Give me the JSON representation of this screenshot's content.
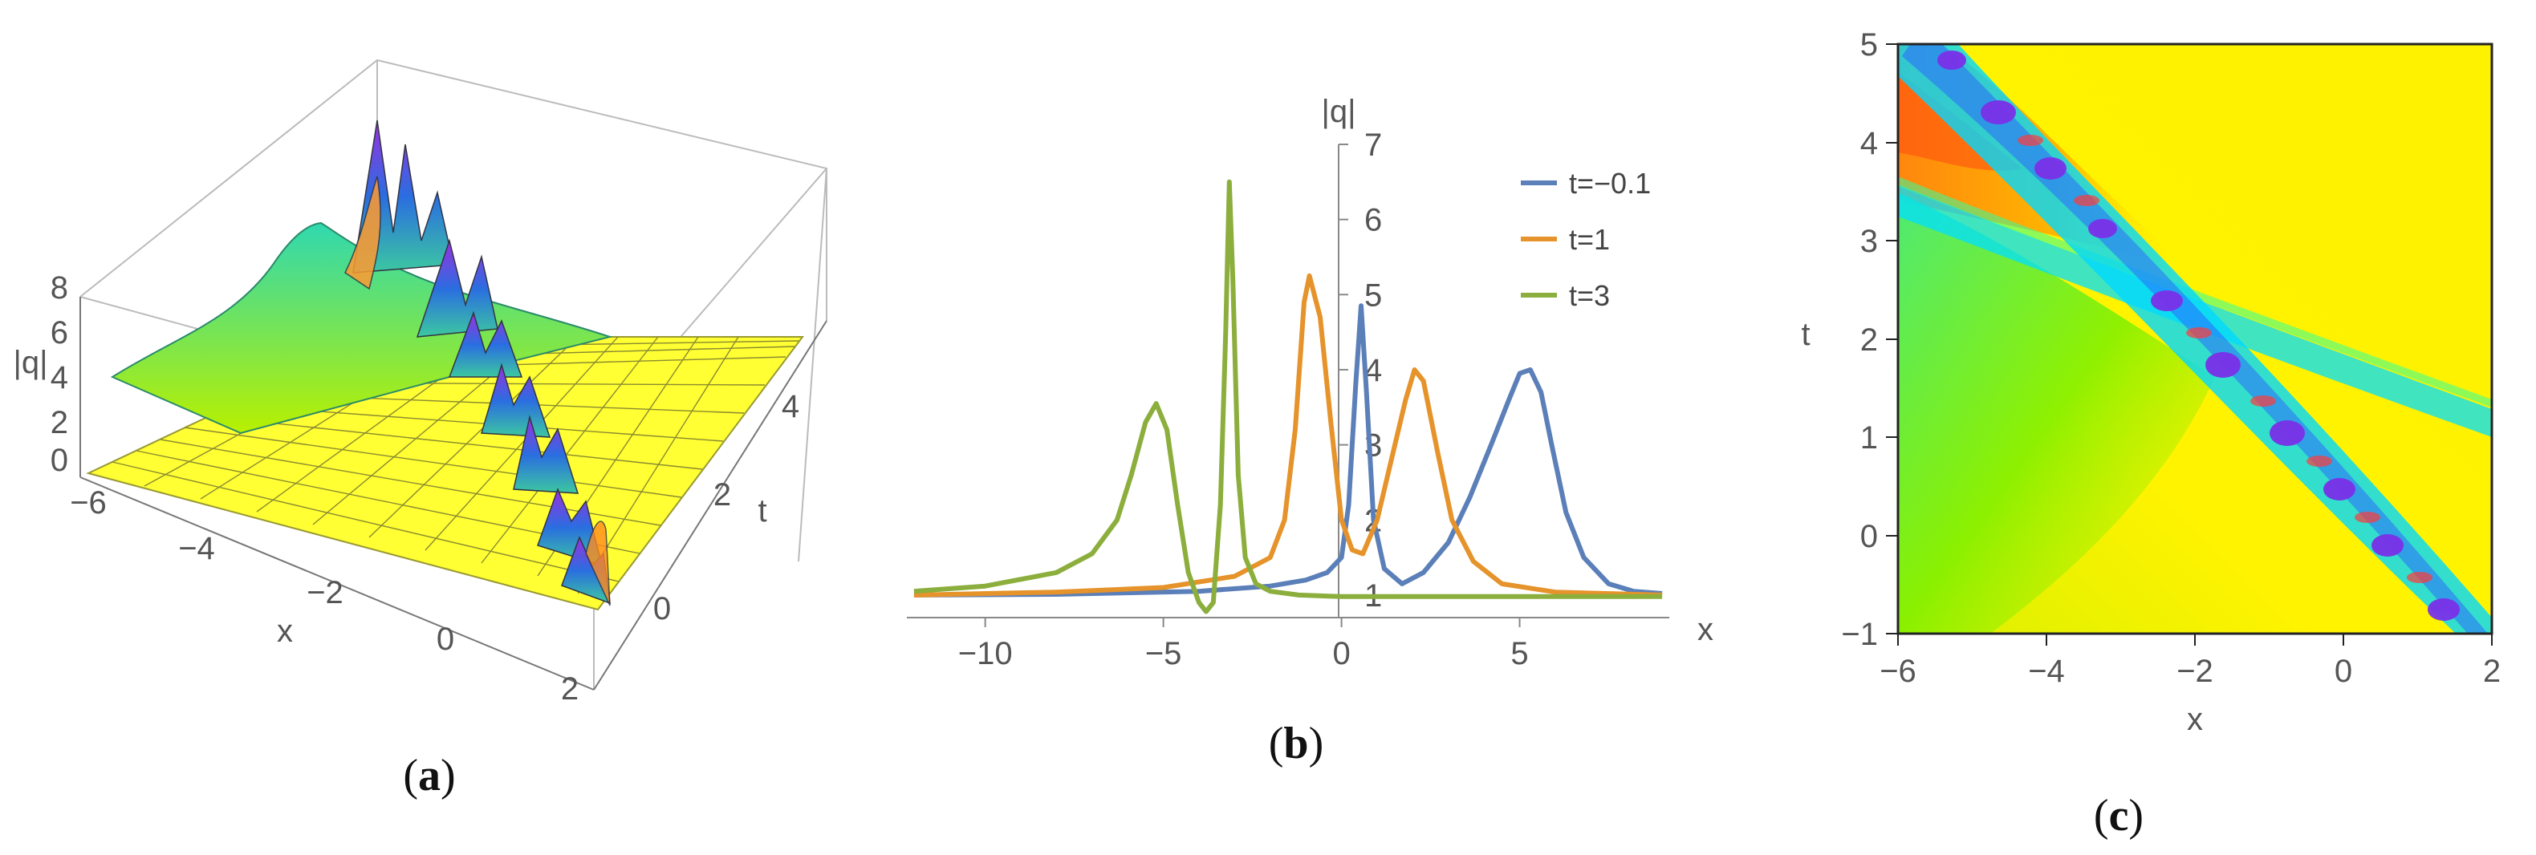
{
  "panels": {
    "a": {
      "caption_open": "(",
      "caption_letter": "a",
      "caption_close": ")"
    },
    "b": {
      "caption_open": "(",
      "caption_letter": "b",
      "caption_close": ")"
    },
    "c": {
      "caption_open": "(",
      "caption_letter": "c",
      "caption_close": ")"
    }
  },
  "chart_data": [
    {
      "type": "surface3d",
      "panel": "a",
      "xlabel": "x",
      "ylabel": "t",
      "zlabel": "|q|",
      "xlim": [
        -6,
        2
      ],
      "ylim": [
        -1,
        5
      ],
      "zlim": [
        0,
        8
      ],
      "x_ticks": [
        "−6",
        "−4",
        "−2",
        "0",
        "2"
      ],
      "y_ticks": [
        "0",
        "2",
        "4"
      ],
      "z_ticks": [
        "0",
        "2",
        "4",
        "6",
        "8"
      ],
      "colors": {
        "base": "#ffff2e",
        "high": "#8a2be2",
        "mid": "#2bd4b0"
      }
    },
    {
      "type": "line",
      "panel": "b",
      "xlabel": "x",
      "ylabel": "|q|",
      "xlim": [
        -12.2,
        9.2
      ],
      "ylim": [
        0.7,
        7
      ],
      "x_ticks": [
        "−10",
        "−5",
        "0",
        "5"
      ],
      "y_ticks": [
        "1",
        "2",
        "3",
        "4",
        "5",
        "6",
        "7"
      ],
      "series": [
        {
          "name": "t=−0.1",
          "color": "#5b7fb8",
          "x": [
            -12,
            -8,
            -4,
            -2,
            -1,
            -0.4,
            0,
            0.2,
            0.4,
            0.55,
            0.7,
            0.9,
            1.2,
            1.7,
            2.3,
            3.0,
            3.6,
            4.2,
            4.7,
            5.0,
            5.3,
            5.6,
            5.9,
            6.3,
            6.8,
            7.5,
            8.2,
            9.0
          ],
          "y": [
            1.0,
            1.01,
            1.05,
            1.12,
            1.2,
            1.3,
            1.5,
            2.2,
            3.8,
            4.85,
            3.7,
            2.0,
            1.35,
            1.15,
            1.3,
            1.7,
            2.3,
            3.0,
            3.6,
            3.95,
            4.0,
            3.7,
            3.0,
            2.1,
            1.5,
            1.15,
            1.05,
            1.02
          ]
        },
        {
          "name": "t=1",
          "color": "#e5932a",
          "x": [
            -12,
            -8,
            -5,
            -3,
            -2,
            -1.6,
            -1.3,
            -1.05,
            -0.9,
            -0.6,
            -0.3,
            0,
            0.3,
            0.6,
            1.0,
            1.4,
            1.8,
            2.05,
            2.3,
            2.7,
            3.1,
            3.7,
            4.5,
            6,
            9
          ],
          "y": [
            1.0,
            1.04,
            1.1,
            1.25,
            1.5,
            2.0,
            3.2,
            4.9,
            5.25,
            4.7,
            3.3,
            2.0,
            1.6,
            1.55,
            2.0,
            2.8,
            3.6,
            4.0,
            3.85,
            2.9,
            2.0,
            1.45,
            1.15,
            1.04,
            1.0
          ]
        },
        {
          "name": "t=3",
          "color": "#8bae3c",
          "x": [
            -12,
            -10,
            -8,
            -7,
            -6.3,
            -5.9,
            -5.5,
            -5.2,
            -4.9,
            -4.6,
            -4.3,
            -4.0,
            -3.8,
            -3.6,
            -3.4,
            -3.25,
            -3.15,
            -3.05,
            -2.9,
            -2.7,
            -2.4,
            -2.0,
            -1.2,
            0,
            3,
            9
          ],
          "y": [
            1.05,
            1.12,
            1.3,
            1.55,
            2.0,
            2.6,
            3.3,
            3.55,
            3.2,
            2.2,
            1.3,
            0.9,
            0.78,
            0.9,
            2.2,
            4.5,
            6.5,
            5.2,
            2.6,
            1.5,
            1.15,
            1.05,
            1.0,
            0.98,
            0.98,
            0.98
          ]
        }
      ]
    },
    {
      "type": "heatmap",
      "panel": "c",
      "xlabel": "x",
      "ylabel": "t",
      "xlim": [
        -6,
        2
      ],
      "ylim": [
        -1,
        5
      ],
      "x_ticks": [
        "−6",
        "−4",
        "−2",
        "0",
        "2"
      ],
      "y_ticks": [
        "−1",
        "0",
        "1",
        "2",
        "3",
        "4",
        "5"
      ],
      "colors": {
        "background": "#ffef00",
        "band": "#00e5ff",
        "peak": "#8a2be2",
        "orange": "#ff7a00",
        "green": "#7cf000"
      }
    }
  ]
}
